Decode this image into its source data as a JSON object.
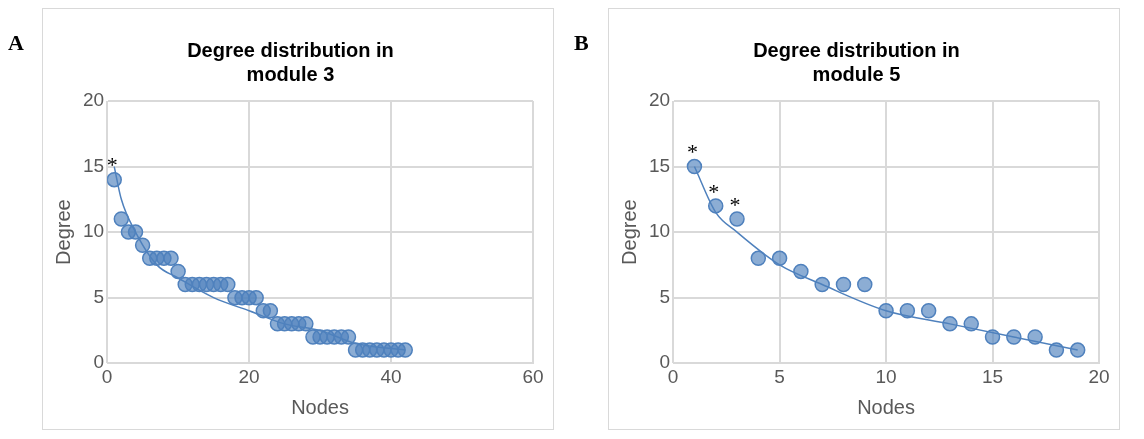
{
  "chart_data": [
    {
      "type": "scatter",
      "title": "Degree distribution in\nmodule 3",
      "xlabel": "Nodes",
      "ylabel": "Degree",
      "xlim": [
        0,
        60
      ],
      "xticks": [
        0,
        20,
        40,
        60
      ],
      "ylim": [
        0,
        20
      ],
      "yticks": [
        0,
        5,
        10,
        15,
        20
      ],
      "grid": true,
      "legend": false,
      "annotations": [
        "A",
        {
          "text": "*",
          "x": 1,
          "y": 14
        }
      ],
      "series": [
        {
          "color": "#4f81bd",
          "marker": "circle",
          "x": [
            1,
            2,
            3,
            4,
            5,
            6,
            7,
            8,
            9,
            10,
            11,
            12,
            13,
            14,
            15,
            16,
            17,
            18,
            19,
            20,
            21,
            22,
            23,
            24,
            25,
            26,
            27,
            28,
            29,
            30,
            31,
            32,
            33,
            34,
            35,
            36,
            37,
            38,
            39,
            40,
            41,
            42
          ],
          "values": [
            14,
            11,
            10,
            10,
            9,
            8,
            8,
            8,
            8,
            7,
            6,
            6,
            6,
            6,
            6,
            6,
            6,
            5,
            5,
            5,
            5,
            4,
            4,
            3,
            3,
            3,
            3,
            3,
            2,
            2,
            2,
            2,
            2,
            2,
            1,
            1,
            1,
            1,
            1,
            1,
            1,
            1
          ]
        },
        {
          "type": "line",
          "marker": "none",
          "color": "#4f81bd",
          "x": [
            1,
            2,
            4,
            7,
            10,
            15,
            20,
            25,
            30,
            35,
            42
          ],
          "values": [
            15,
            12.5,
            10,
            7.5,
            6.5,
            5,
            4,
            3,
            2.5,
            1.5,
            1
          ]
        }
      ]
    },
    {
      "type": "scatter",
      "title": "Degree distribution in\nmodule 5",
      "xlabel": "Nodes",
      "ylabel": "Degree",
      "xlim": [
        0,
        20
      ],
      "xticks": [
        0,
        5,
        10,
        15,
        20
      ],
      "ylim": [
        0,
        20
      ],
      "yticks": [
        0,
        5,
        10,
        15,
        20
      ],
      "grid": true,
      "legend": false,
      "annotations": [
        "B",
        {
          "text": "*",
          "x": 1,
          "y": 15
        },
        {
          "text": "*",
          "x": 2,
          "y": 12
        },
        {
          "text": "*",
          "x": 3,
          "y": 11
        }
      ],
      "series": [
        {
          "color": "#4f81bd",
          "marker": "circle",
          "x": [
            1,
            2,
            3,
            4,
            5,
            6,
            7,
            8,
            9,
            10,
            11,
            12,
            13,
            14,
            15,
            16,
            17,
            18,
            19
          ],
          "values": [
            15,
            12,
            11,
            8,
            8,
            7,
            6,
            6,
            6,
            4,
            4,
            4,
            3,
            3,
            2,
            2,
            2,
            1,
            1
          ]
        },
        {
          "type": "line",
          "marker": "none",
          "color": "#4f81bd",
          "x": [
            1,
            2,
            3,
            5,
            7,
            10,
            13,
            16,
            19
          ],
          "values": [
            15,
            11.5,
            10,
            7.5,
            6,
            4,
            3,
            2,
            1
          ]
        }
      ]
    }
  ]
}
